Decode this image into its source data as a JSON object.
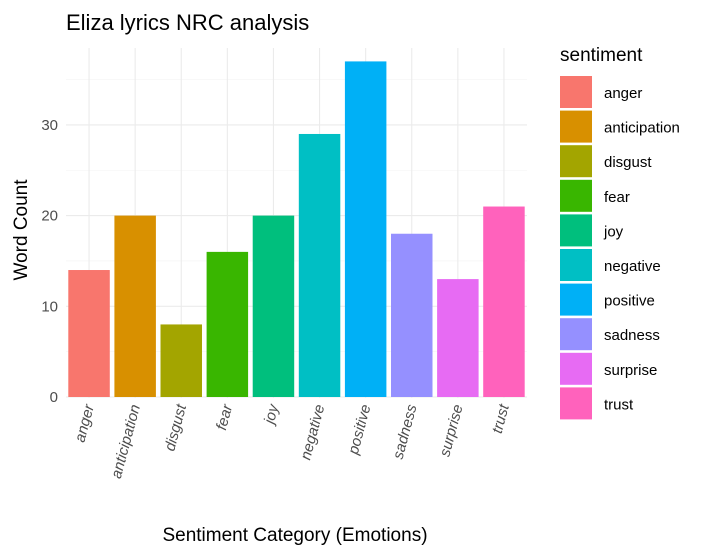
{
  "chart_data": {
    "type": "bar",
    "title": "Eliza lyrics NRC analysis",
    "xlabel": "Sentiment Category (Emotions)",
    "ylabel": "Word Count",
    "categories": [
      "anger",
      "anticipation",
      "disgust",
      "fear",
      "joy",
      "negative",
      "positive",
      "sadness",
      "surprise",
      "trust"
    ],
    "values": [
      14,
      20,
      8,
      16,
      20,
      29,
      37,
      18,
      13,
      21
    ],
    "colors": [
      "#F8766D",
      "#D89000",
      "#A3A500",
      "#39B600",
      "#00BF7D",
      "#00BFC4",
      "#00B0F6",
      "#9590FF",
      "#E76BF3",
      "#FF62BC"
    ],
    "yticks": [
      0,
      10,
      20,
      30
    ],
    "ylim": [
      0,
      37
    ],
    "grid": true,
    "legend": {
      "title": "sentiment",
      "position": "right"
    }
  }
}
